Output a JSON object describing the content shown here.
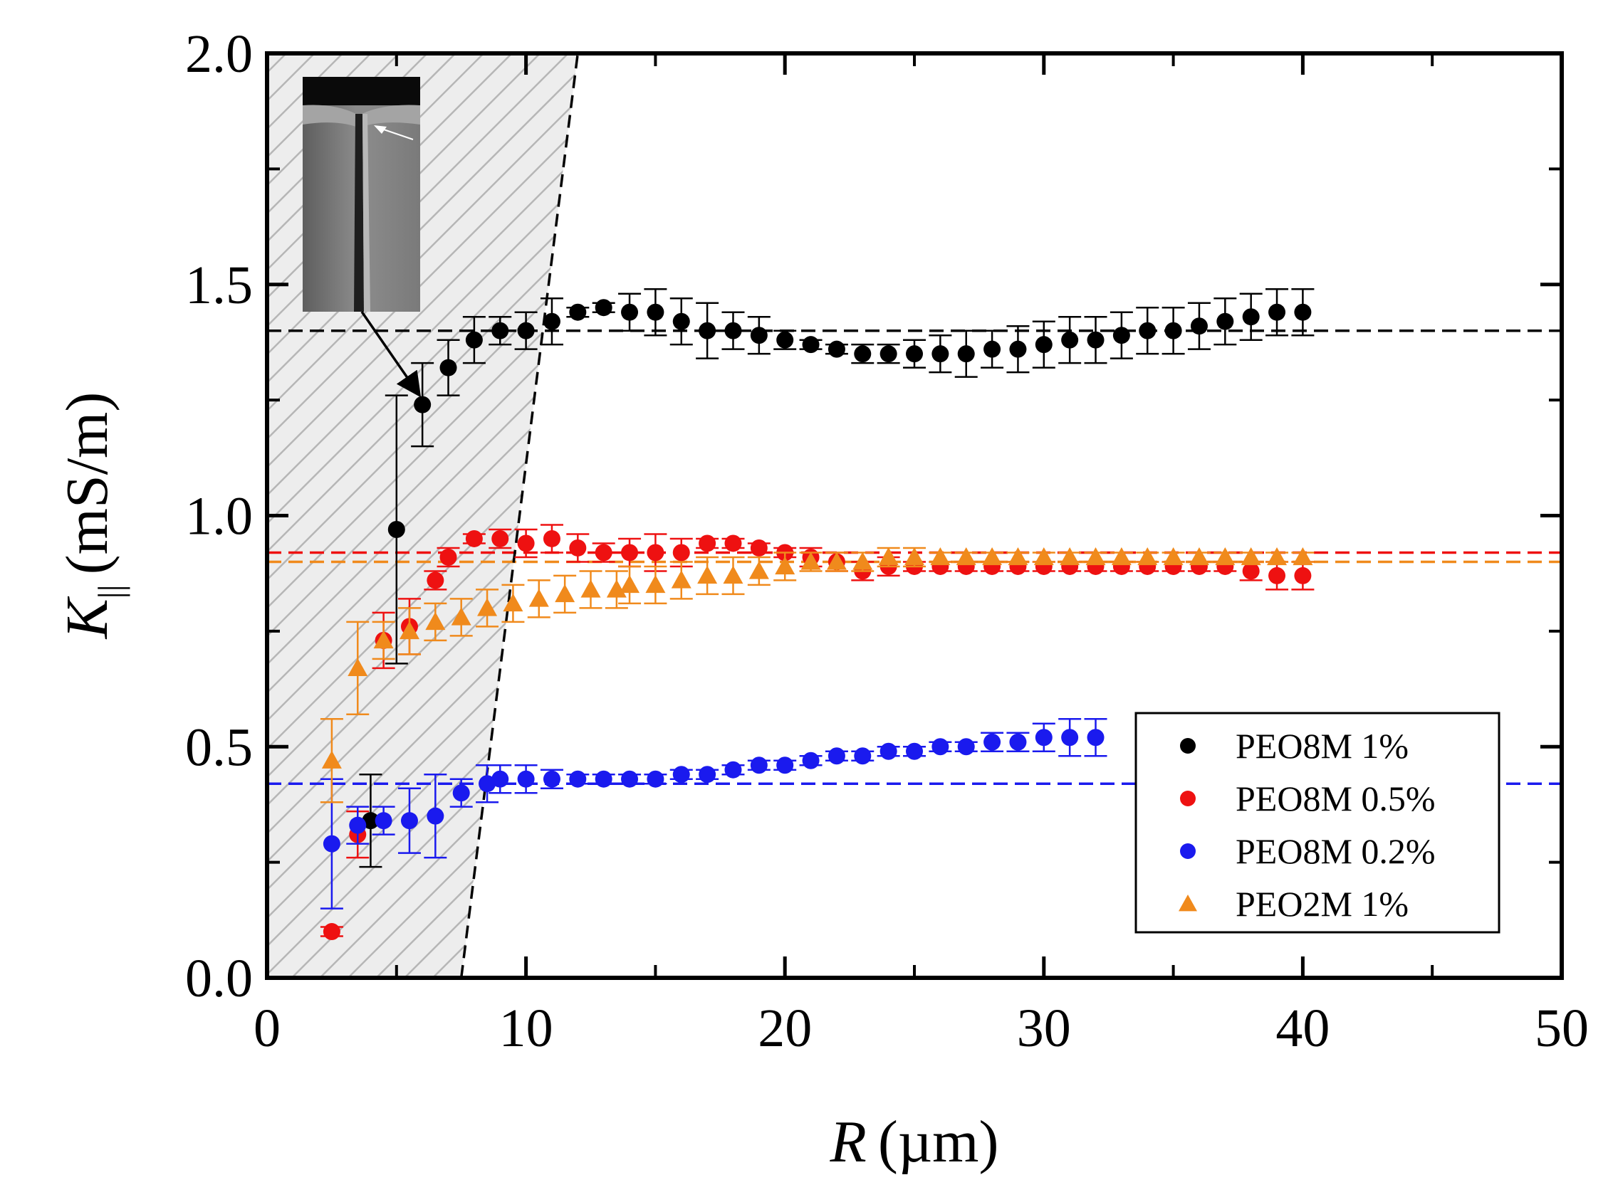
{
  "chart_data": {
    "type": "scatter",
    "xlabel": "R (µm)",
    "ylabel": "K|| (mS/m)",
    "xlabel_parts": {
      "var": "R",
      "unit": "(µm)"
    },
    "ylabel_parts": {
      "var": "K",
      "sub": "||",
      "unit": "(mS/m)"
    },
    "xlim": [
      0,
      50
    ],
    "ylim": [
      0.0,
      2.0
    ],
    "xticks": [
      {
        "value": 0,
        "label": "0"
      },
      {
        "value": 10,
        "label": "10"
      },
      {
        "value": 20,
        "label": "20"
      },
      {
        "value": 30,
        "label": "30"
      },
      {
        "value": 40,
        "label": "40"
      },
      {
        "value": 50,
        "label": "50"
      }
    ],
    "yticks": [
      {
        "value": 0.0,
        "label": "0.0"
      },
      {
        "value": 0.5,
        "label": "0.5"
      },
      {
        "value": 1.0,
        "label": "1.0"
      },
      {
        "value": 1.5,
        "label": "1.5"
      },
      {
        "value": 2.0,
        "label": "2.0"
      }
    ],
    "legend_position": "bottom-right",
    "series": [
      {
        "name": "PEO8M 1%",
        "color": "#000000",
        "marker": "circle",
        "plateau": 1.4,
        "x": [
          4,
          5,
          6,
          7,
          8,
          9,
          10,
          11,
          12,
          13,
          14,
          15,
          16,
          17,
          18,
          19,
          20,
          21,
          22,
          23,
          24,
          25,
          26,
          27,
          28,
          29,
          30,
          31,
          32,
          33,
          34,
          35,
          36,
          37,
          38,
          39,
          40
        ],
        "y": [
          0.34,
          0.97,
          1.24,
          1.32,
          1.38,
          1.4,
          1.4,
          1.42,
          1.44,
          1.45,
          1.44,
          1.44,
          1.42,
          1.4,
          1.4,
          1.39,
          1.38,
          1.37,
          1.36,
          1.35,
          1.35,
          1.35,
          1.35,
          1.35,
          1.36,
          1.36,
          1.37,
          1.38,
          1.38,
          1.39,
          1.4,
          1.4,
          1.41,
          1.42,
          1.43,
          1.44,
          1.44
        ],
        "err": [
          0.1,
          0.29,
          0.09,
          0.06,
          0.05,
          0.03,
          0.04,
          0.05,
          0.01,
          0.01,
          0.04,
          0.05,
          0.05,
          0.06,
          0.04,
          0.04,
          0.02,
          0.01,
          0.01,
          0.02,
          0.02,
          0.03,
          0.04,
          0.05,
          0.04,
          0.05,
          0.05,
          0.05,
          0.05,
          0.05,
          0.05,
          0.05,
          0.05,
          0.05,
          0.05,
          0.05,
          0.05
        ]
      },
      {
        "name": "PEO8M 0.5%",
        "color": "#ee1111",
        "marker": "circle",
        "plateau": 0.92,
        "x": [
          2.5,
          3.5,
          4.5,
          5.5,
          6.5,
          7,
          8,
          9,
          10,
          11,
          12,
          13,
          14,
          15,
          16,
          17,
          18,
          19,
          20,
          21,
          22,
          23,
          24,
          25,
          26,
          27,
          28,
          29,
          30,
          31,
          32,
          33,
          34,
          35,
          36,
          37,
          38,
          39,
          40
        ],
        "y": [
          0.1,
          0.31,
          0.73,
          0.76,
          0.86,
          0.91,
          0.95,
          0.95,
          0.94,
          0.95,
          0.93,
          0.92,
          0.92,
          0.92,
          0.92,
          0.94,
          0.94,
          0.93,
          0.92,
          0.91,
          0.9,
          0.88,
          0.89,
          0.89,
          0.89,
          0.89,
          0.89,
          0.89,
          0.89,
          0.89,
          0.89,
          0.89,
          0.89,
          0.89,
          0.89,
          0.89,
          0.88,
          0.87,
          0.87
        ],
        "err": [
          0.01,
          0.05,
          0.06,
          0.06,
          0.02,
          0.02,
          0.01,
          0.02,
          0.03,
          0.03,
          0.03,
          0.02,
          0.03,
          0.04,
          0.03,
          0.01,
          0.01,
          0.01,
          0.01,
          0.02,
          0.02,
          0.02,
          0.02,
          0.01,
          0.01,
          0.01,
          0.01,
          0.01,
          0.01,
          0.01,
          0.01,
          0.01,
          0.01,
          0.01,
          0.01,
          0.01,
          0.02,
          0.03,
          0.03
        ]
      },
      {
        "name": "PEO8M 0.2%",
        "color": "#1a1aee",
        "marker": "circle",
        "plateau": 0.42,
        "x": [
          2.5,
          3.5,
          4.5,
          5.5,
          6.5,
          7.5,
          8.5,
          9,
          10,
          11,
          12,
          13,
          14,
          15,
          16,
          17,
          18,
          19,
          20,
          21,
          22,
          23,
          24,
          25,
          26,
          27,
          28,
          29,
          30,
          31,
          32
        ],
        "y": [
          0.29,
          0.33,
          0.34,
          0.34,
          0.35,
          0.4,
          0.42,
          0.43,
          0.43,
          0.43,
          0.43,
          0.43,
          0.43,
          0.43,
          0.44,
          0.44,
          0.45,
          0.46,
          0.46,
          0.47,
          0.48,
          0.48,
          0.49,
          0.49,
          0.5,
          0.5,
          0.51,
          0.51,
          0.52,
          0.52,
          0.52
        ],
        "err": [
          0.14,
          0.04,
          0.03,
          0.07,
          0.09,
          0.03,
          0.04,
          0.03,
          0.03,
          0.02,
          0.01,
          0.01,
          0.01,
          0.01,
          0.01,
          0.01,
          0.01,
          0.01,
          0.01,
          0.01,
          0.01,
          0.01,
          0.01,
          0.01,
          0.01,
          0.01,
          0.02,
          0.02,
          0.03,
          0.04,
          0.04
        ]
      },
      {
        "name": "PEO2M 1%",
        "color": "#f08a1c",
        "marker": "triangle",
        "plateau": 0.9,
        "x": [
          2.5,
          3.5,
          4.5,
          5.5,
          6.5,
          7.5,
          8.5,
          9.5,
          10.5,
          11.5,
          12.5,
          13.5,
          14,
          15,
          16,
          17,
          18,
          19,
          20,
          21,
          22,
          23,
          24,
          25,
          26,
          27,
          28,
          29,
          30,
          31,
          32,
          33,
          34,
          35,
          36,
          37,
          38,
          39,
          40
        ],
        "y": [
          0.47,
          0.67,
          0.73,
          0.75,
          0.77,
          0.78,
          0.8,
          0.81,
          0.82,
          0.83,
          0.84,
          0.84,
          0.85,
          0.85,
          0.86,
          0.87,
          0.87,
          0.88,
          0.89,
          0.9,
          0.9,
          0.9,
          0.91,
          0.91,
          0.91,
          0.91,
          0.91,
          0.91,
          0.91,
          0.91,
          0.91,
          0.91,
          0.91,
          0.91,
          0.91,
          0.91,
          0.91,
          0.91,
          0.91
        ],
        "err": [
          0.09,
          0.1,
          0.04,
          0.05,
          0.04,
          0.04,
          0.04,
          0.04,
          0.04,
          0.04,
          0.04,
          0.04,
          0.04,
          0.04,
          0.04,
          0.04,
          0.04,
          0.03,
          0.03,
          0.02,
          0.02,
          0.02,
          0.02,
          0.02,
          0.01,
          0.01,
          0.01,
          0.01,
          0.01,
          0.01,
          0.01,
          0.01,
          0.01,
          0.01,
          0.01,
          0.01,
          0.01,
          0.01,
          0.01
        ]
      }
    ],
    "limit_line": {
      "from": [
        7.5,
        0.0
      ],
      "to": [
        12,
        2.0
      ]
    },
    "annotation": {
      "target": [
        6,
        1.24
      ]
    }
  }
}
